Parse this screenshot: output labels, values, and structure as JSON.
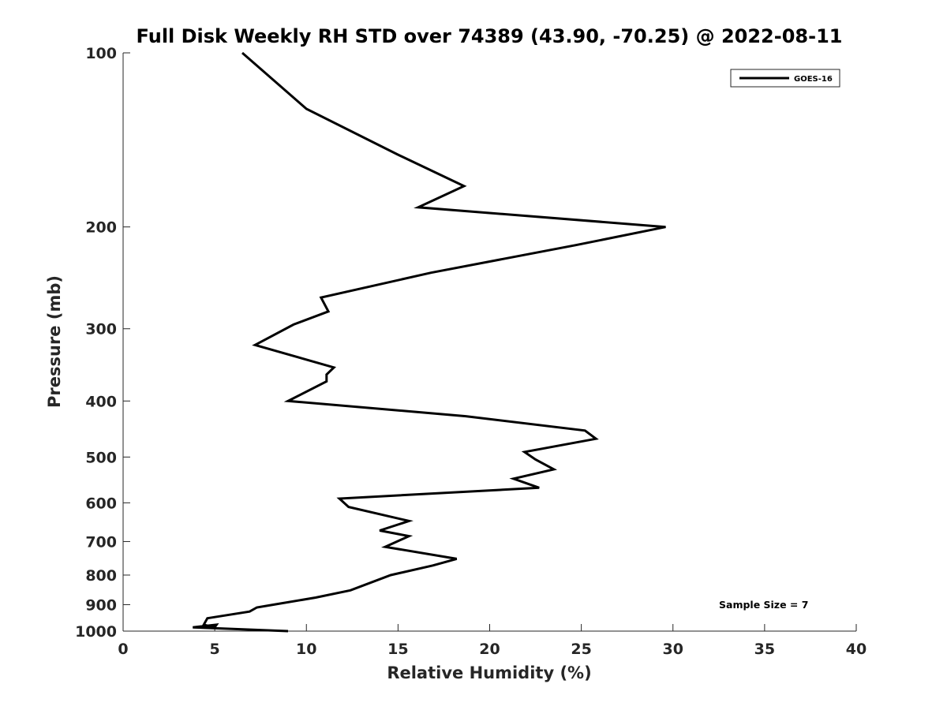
{
  "chart_data": {
    "type": "line",
    "title": "Full Disk Weekly RH STD over 74389 (43.90, -70.25) @ 2022-08-11",
    "xlabel": "Relative Humidity (%)",
    "ylabel": "Pressure (mb)",
    "xlim": [
      0,
      40
    ],
    "ylim": [
      1000,
      100
    ],
    "y_scale": "log",
    "x_ticks": [
      0,
      5,
      10,
      15,
      20,
      25,
      30,
      35,
      40
    ],
    "y_ticks": [
      100,
      200,
      300,
      400,
      500,
      600,
      700,
      800,
      900,
      1000
    ],
    "grid": false,
    "legend_position": "top-right",
    "series": [
      {
        "name": "GOES-16",
        "color": "#000000",
        "x": [
          6.5,
          10.0,
          15.0,
          18.6,
          16.1,
          29.6,
          24.7,
          16.8,
          10.8,
          11.2,
          9.3,
          7.2,
          11.5,
          11.1,
          11.1,
          9.0,
          18.7,
          25.2,
          25.8,
          21.9,
          22.5,
          23.5,
          21.3,
          22.7,
          11.8,
          12.3,
          15.6,
          14.0,
          15.6,
          14.3,
          18.2,
          16.9,
          14.6,
          12.4,
          10.5,
          8.2,
          7.3,
          6.9,
          4.6,
          4.4,
          5.0,
          5.1,
          3.8,
          9.0
        ],
        "y": [
          100,
          125,
          150,
          170,
          185,
          200,
          215,
          240,
          265,
          280,
          295,
          320,
          350,
          360,
          370,
          400,
          425,
          450,
          465,
          490,
          505,
          525,
          545,
          565,
          590,
          610,
          645,
          670,
          685,
          715,
          750,
          770,
          800,
          850,
          875,
          900,
          910,
          925,
          950,
          975,
          985,
          975,
          985,
          1000
        ]
      }
    ],
    "annotations": [
      "Sample Size = 7"
    ]
  }
}
